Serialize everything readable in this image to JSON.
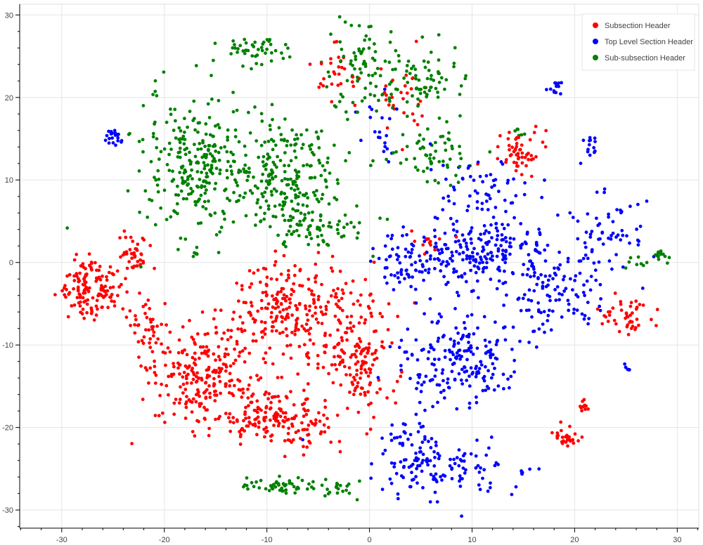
{
  "chart_data": {
    "type": "scatter",
    "title": "",
    "xlabel": "",
    "ylabel": "",
    "xlim": [
      -34.1,
      32.1
    ],
    "ylim": [
      -32.2,
      31.3
    ],
    "xticks": [
      -30,
      -20,
      -10,
      0,
      10,
      20,
      30
    ],
    "yticks": [
      -30,
      -20,
      -10,
      0,
      10,
      20,
      30
    ],
    "grid": true,
    "legend_position": "top-right",
    "series": [
      {
        "name": "Subsection Header",
        "color": "#ff0000",
        "clusters": [
          {
            "cx": -27,
            "cy": -3,
            "sx": 2.3,
            "sy": 2.6,
            "n": 140
          },
          {
            "cx": -23,
            "cy": 1,
            "sx": 1.0,
            "sy": 1.8,
            "n": 40
          },
          {
            "cx": -22,
            "cy": -8,
            "sx": 1.5,
            "sy": 2.3,
            "n": 35
          },
          {
            "cx": -16,
            "cy": -14,
            "sx": 4.0,
            "sy": 4.5,
            "n": 260
          },
          {
            "cx": -8,
            "cy": -6,
            "sx": 3.8,
            "sy": 4.0,
            "n": 220
          },
          {
            "cx": -9,
            "cy": -19,
            "sx": 3.8,
            "sy": 2.3,
            "n": 150
          },
          {
            "cx": -1,
            "cy": -11,
            "sx": 2.3,
            "sy": 5.5,
            "n": 170
          },
          {
            "cx": 14.5,
            "cy": 13.5,
            "sx": 1.6,
            "sy": 1.9,
            "n": 55
          },
          {
            "cx": 25.5,
            "cy": -6.5,
            "sx": 2.0,
            "sy": 1.8,
            "n": 45
          },
          {
            "cx": 19,
            "cy": -21,
            "sx": 1.0,
            "sy": 1.0,
            "n": 28
          },
          {
            "cx": 21,
            "cy": -17.5,
            "sx": 0.4,
            "sy": 0.7,
            "n": 10
          },
          {
            "cx": 3,
            "cy": 20,
            "sx": 2.5,
            "sy": 3.0,
            "n": 30
          },
          {
            "cx": 6,
            "cy": 2,
            "sx": 2.0,
            "sy": 1.5,
            "n": 15
          },
          {
            "cx": -3,
            "cy": 23,
            "sx": 1.5,
            "sy": 2.5,
            "n": 28
          }
        ]
      },
      {
        "name": "Top Level Section Header",
        "color": "#0000ff",
        "clusters": [
          {
            "cx": 4,
            "cy": 0,
            "sx": 2.0,
            "sy": 3.0,
            "n": 70
          },
          {
            "cx": 11,
            "cy": 1,
            "sx": 4.0,
            "sy": 2.7,
            "n": 200
          },
          {
            "cx": 18,
            "cy": -3,
            "sx": 3.0,
            "sy": 3.5,
            "n": 110
          },
          {
            "cx": 23,
            "cy": 4,
            "sx": 2.3,
            "sy": 3.5,
            "n": 60
          },
          {
            "cx": 9,
            "cy": -12,
            "sx": 4.0,
            "sy": 3.5,
            "n": 200
          },
          {
            "cx": 7,
            "cy": -25,
            "sx": 5.0,
            "sy": 2.3,
            "n": 120
          },
          {
            "cx": 4,
            "cy": -21,
            "sx": 1.8,
            "sy": 1.5,
            "n": 30
          },
          {
            "cx": 11,
            "cy": 9,
            "sx": 3.5,
            "sy": 2.5,
            "n": 60
          },
          {
            "cx": 18,
            "cy": 21.5,
            "sx": 0.6,
            "sy": 0.7,
            "n": 14
          },
          {
            "cx": 21.5,
            "cy": 14.5,
            "sx": 0.7,
            "sy": 1.3,
            "n": 14
          },
          {
            "cx": -25,
            "cy": 15,
            "sx": 0.6,
            "sy": 0.7,
            "n": 20
          },
          {
            "cx": 15,
            "cy": -25.5,
            "sx": 0.6,
            "sy": 0.4,
            "n": 6
          },
          {
            "cx": 25,
            "cy": -13,
            "sx": 0.3,
            "sy": 0.4,
            "n": 5
          },
          {
            "cx": 1,
            "cy": 16,
            "sx": 1.5,
            "sy": 3.0,
            "n": 20
          }
        ]
      },
      {
        "name": "Sub-subsection Header",
        "color": "#008000",
        "clusters": [
          {
            "cx": -17,
            "cy": 12,
            "sx": 3.5,
            "sy": 5.5,
            "n": 260
          },
          {
            "cx": -8,
            "cy": 10,
            "sx": 3.5,
            "sy": 4.5,
            "n": 230
          },
          {
            "cx": -5,
            "cy": 4,
            "sx": 3.0,
            "sy": 1.8,
            "n": 60
          },
          {
            "cx": -11,
            "cy": 26,
            "sx": 2.0,
            "sy": 1.2,
            "n": 45
          },
          {
            "cx": -1,
            "cy": 24,
            "sx": 2.0,
            "sy": 3.5,
            "n": 70
          },
          {
            "cx": 5,
            "cy": 22,
            "sx": 3.0,
            "sy": 3.0,
            "n": 80
          },
          {
            "cx": 6,
            "cy": 13,
            "sx": 3.0,
            "sy": 2.3,
            "n": 60
          },
          {
            "cx": -9,
            "cy": -27,
            "sx": 3.0,
            "sy": 0.7,
            "n": 50
          },
          {
            "cx": -3,
            "cy": -27.5,
            "sx": 2.0,
            "sy": 0.7,
            "n": 20
          },
          {
            "cx": 28.5,
            "cy": 1,
            "sx": 0.6,
            "sy": 0.6,
            "n": 14
          },
          {
            "cx": 26,
            "cy": 0,
            "sx": 0.8,
            "sy": 0.6,
            "n": 8
          },
          {
            "cx": -29.5,
            "cy": 4.2,
            "sx": 0.1,
            "sy": 0.1,
            "n": 1
          },
          {
            "cx": -17,
            "cy": 1,
            "sx": 0.4,
            "sy": 0.5,
            "n": 6
          },
          {
            "cx": 14.7,
            "cy": 15.6,
            "sx": 0.4,
            "sy": 0.4,
            "n": 6
          }
        ]
      }
    ]
  }
}
